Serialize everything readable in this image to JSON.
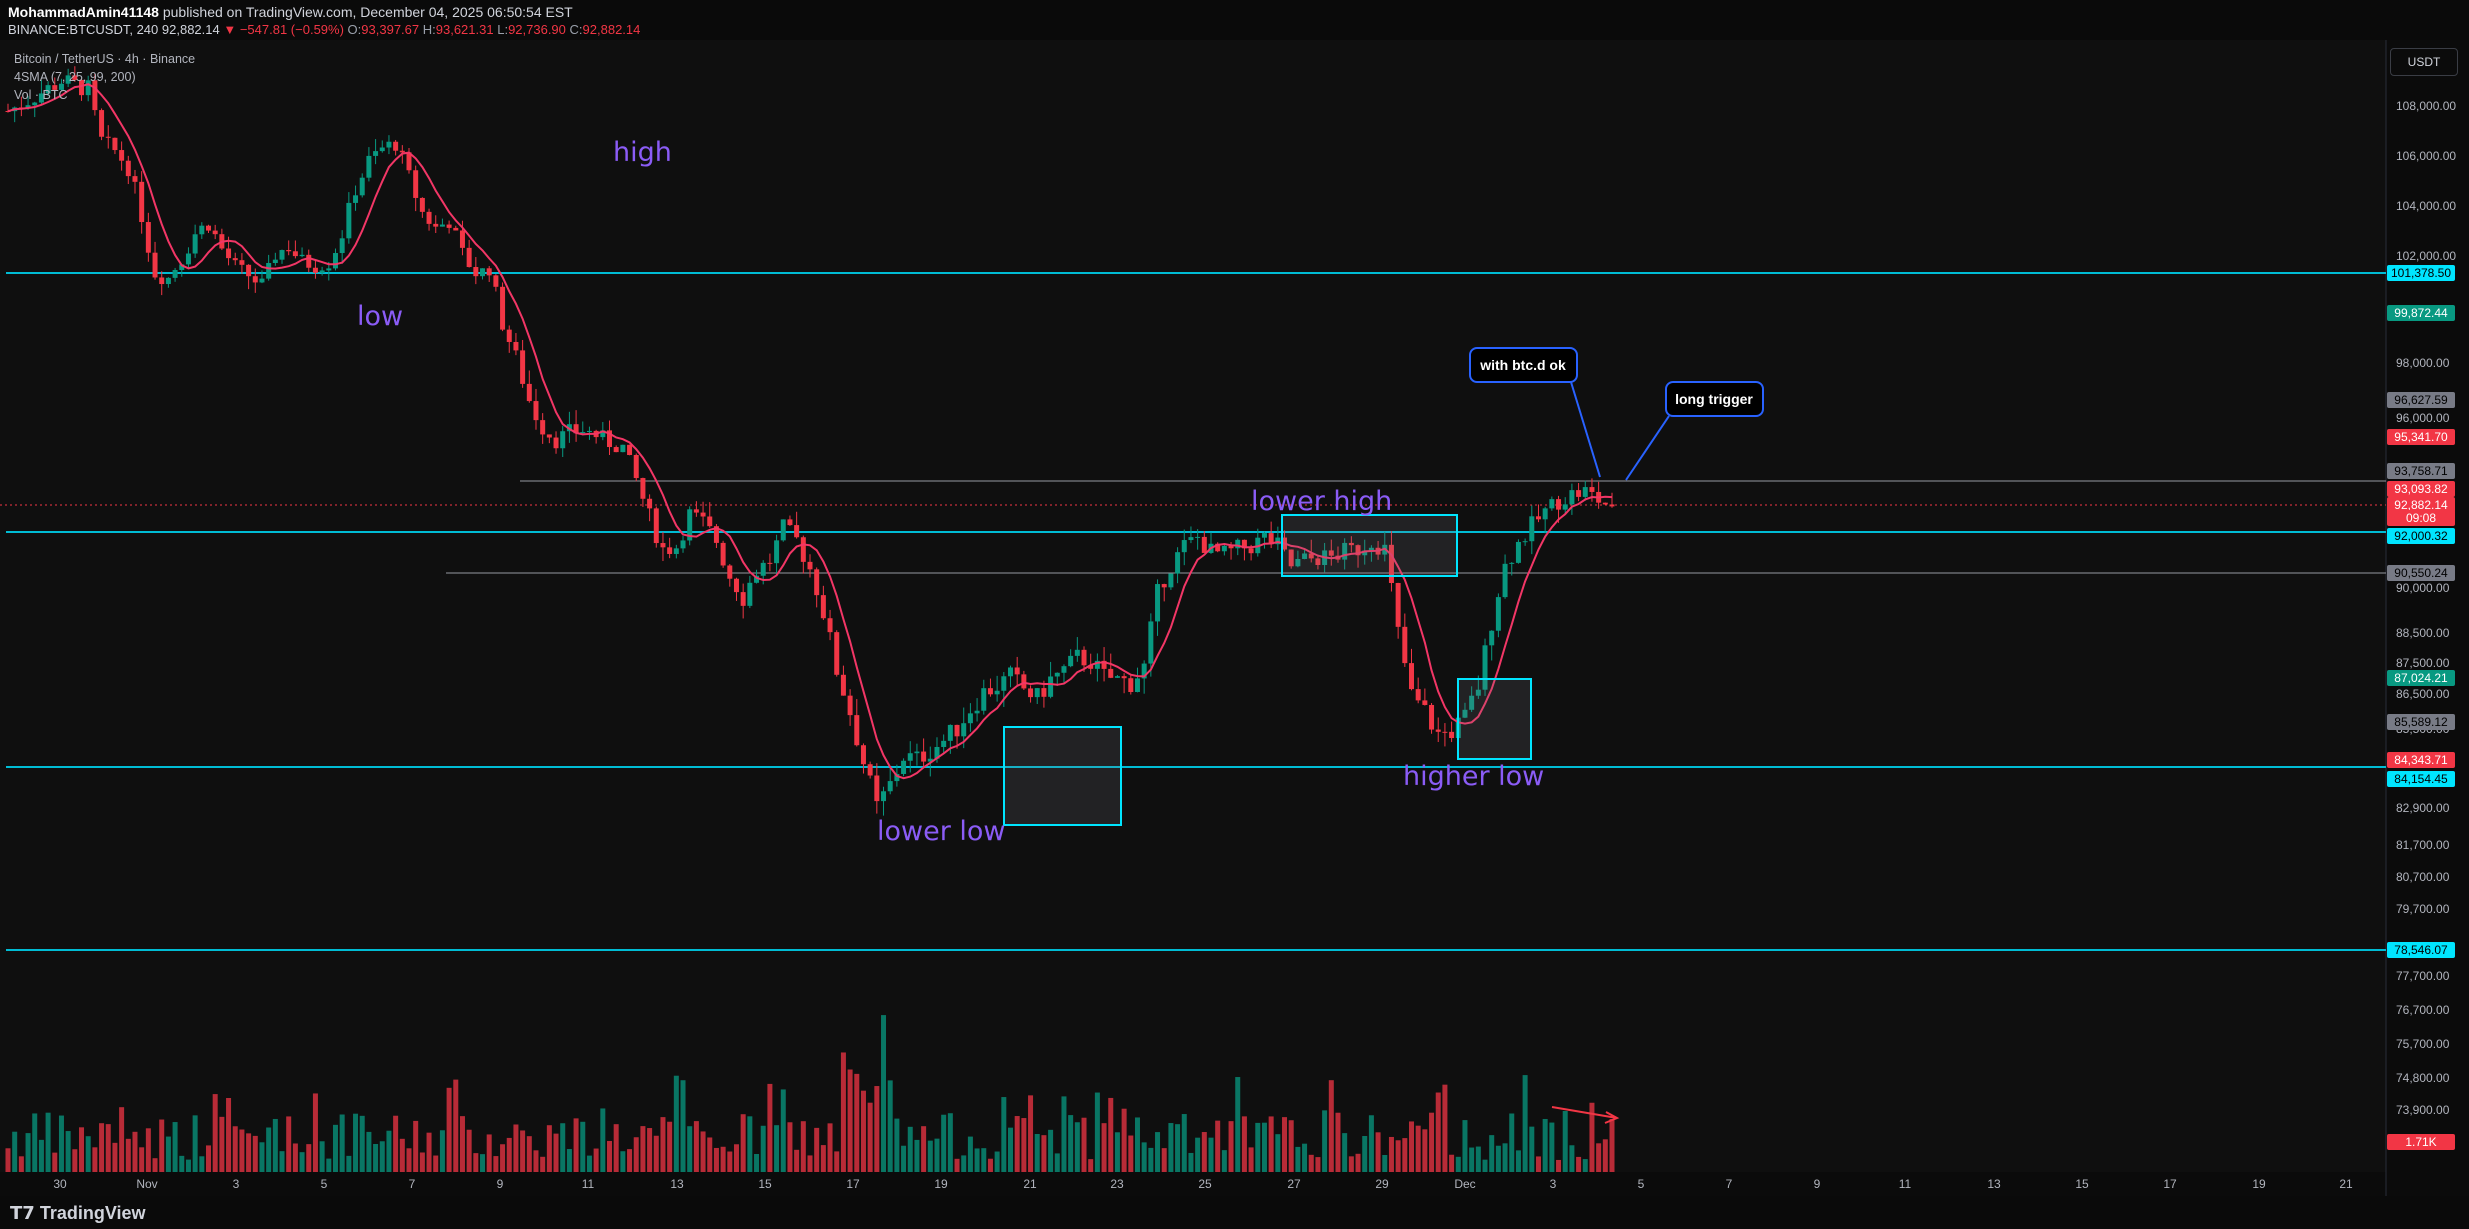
{
  "header": {
    "author": "MohammadAmin41148",
    "published_text": "published on TradingView.com, December 04, 2025 06:50:54 EST",
    "symbol": "BINANCE:BTCUSDT, 240",
    "price": "92,882.14",
    "change": "▼ −547.81 (−0.59%)",
    "o_label": "O:",
    "o": "93,397.67",
    "h_label": "H:",
    "h": "93,621.31",
    "l_label": "L:",
    "l": "92,736.90",
    "c_label": "C:",
    "c": "92,882.14"
  },
  "legend": {
    "line1": "Bitcoin / TetherUS · 4h · Binance",
    "line2": "4SMA (7, 25, 99, 200)",
    "line3": "Vol · BTC"
  },
  "currency": "USDT",
  "footer": {
    "brand": "TradingView"
  },
  "chart_data": {
    "type": "candlestick",
    "y_axis_ticks": [
      "108,000.00",
      "106,000.00",
      "104,000.00",
      "102,000.00",
      "98,000.00",
      "96,000.00",
      "90,000.00",
      "88,500.00",
      "87,500.00",
      "86,500.00",
      "85,500.00",
      "82,900.00",
      "81,700.00",
      "80,700.00",
      "79,700.00",
      "77,700.00",
      "76,700.00",
      "75,700.00",
      "74,800.00",
      "73,900.00",
      "72,900.00"
    ],
    "x_axis_ticks": [
      "30",
      "Nov",
      "3",
      "5",
      "7",
      "9",
      "11",
      "13",
      "15",
      "17",
      "19",
      "21",
      "23",
      "25",
      "27",
      "29",
      "Dec",
      "3",
      "5",
      "7",
      "9",
      "11",
      "13",
      "15",
      "17",
      "19",
      "21"
    ],
    "price_labels": [
      {
        "value": "101,378.50",
        "color": "#00e5ff",
        "text_color": "#000"
      },
      {
        "value": "99,872.44",
        "color": "#089981",
        "text_color": "#fff"
      },
      {
        "value": "96,627.59",
        "color": "#787b86",
        "text_color": "#000"
      },
      {
        "value": "95,341.70",
        "color": "#f23645",
        "text_color": "#fff"
      },
      {
        "value": "93,758.71",
        "color": "#787b86",
        "text_color": "#000"
      },
      {
        "value": "93,093.82",
        "color": "#f23645",
        "text_color": "#fff"
      },
      {
        "value": "92,882.14",
        "color": "#f23645",
        "text_color": "#fff"
      },
      {
        "value": "09:08",
        "color": "#f23645",
        "text_color": "#fff"
      },
      {
        "value": "92,000.32",
        "color": "#00e5ff",
        "text_color": "#000"
      },
      {
        "value": "90,550.24",
        "color": "#787b86",
        "text_color": "#000"
      },
      {
        "value": "87,024.21",
        "color": "#089981",
        "text_color": "#fff"
      },
      {
        "value": "85,589.12",
        "color": "#787b86",
        "text_color": "#000"
      },
      {
        "value": "84,343.71",
        "color": "#f23645",
        "text_color": "#fff"
      },
      {
        "value": "84,154.45",
        "color": "#00e5ff",
        "text_color": "#000"
      },
      {
        "value": "78,546.07",
        "color": "#00e5ff",
        "text_color": "#000"
      },
      {
        "value": "1.71K",
        "color": "#f23645",
        "text_color": "#fff"
      }
    ],
    "horizontal_levels": [
      101378.5,
      93758.71,
      92000.32,
      90550.24,
      84154.45,
      78546.07
    ],
    "annotations": {
      "high": "high",
      "low": "low",
      "lower_high": "lower high",
      "lower_low": "lower low",
      "higher_low": "higher low",
      "callout1": "with btc.d ok",
      "callout2": "long trigger"
    },
    "price_path": [
      [
        0,
        107800
      ],
      [
        8,
        108900
      ],
      [
        12,
        108600
      ],
      [
        14,
        106600
      ],
      [
        16,
        106200
      ],
      [
        18,
        105600
      ],
      [
        20,
        103800
      ],
      [
        22,
        101400
      ],
      [
        24,
        101200
      ],
      [
        26,
        102100
      ],
      [
        28,
        103100
      ],
      [
        30,
        103500
      ],
      [
        32,
        102500
      ],
      [
        34,
        101800
      ],
      [
        36,
        101300
      ],
      [
        38,
        100900
      ],
      [
        40,
        102300
      ],
      [
        42,
        102600
      ],
      [
        44,
        102000
      ],
      [
        46,
        101700
      ],
      [
        48,
        101900
      ],
      [
        50,
        103100
      ],
      [
        52,
        104800
      ],
      [
        54,
        105800
      ],
      [
        56,
        106300
      ],
      [
        58,
        106500
      ],
      [
        60,
        105200
      ],
      [
        62,
        103900
      ],
      [
        64,
        103300
      ],
      [
        66,
        103600
      ],
      [
        68,
        102300
      ],
      [
        70,
        101400
      ],
      [
        72,
        101600
      ],
      [
        74,
        99500
      ],
      [
        76,
        98200
      ],
      [
        78,
        96800
      ],
      [
        80,
        95900
      ],
      [
        82,
        95400
      ],
      [
        84,
        95700
      ],
      [
        86,
        95800
      ],
      [
        88,
        95600
      ],
      [
        90,
        95300
      ],
      [
        92,
        95100
      ],
      [
        94,
        93800
      ],
      [
        96,
        92500
      ],
      [
        98,
        91400
      ],
      [
        100,
        91500
      ],
      [
        102,
        92600
      ],
      [
        104,
        92300
      ],
      [
        106,
        91700
      ],
      [
        108,
        90400
      ],
      [
        110,
        89600
      ],
      [
        112,
        90600
      ],
      [
        114,
        91000
      ],
      [
        116,
        92100
      ],
      [
        118,
        91700
      ],
      [
        120,
        90700
      ],
      [
        122,
        89100
      ],
      [
        124,
        87200
      ],
      [
        126,
        85900
      ],
      [
        128,
        84300
      ],
      [
        130,
        82900
      ],
      [
        132,
        83600
      ],
      [
        134,
        84500
      ],
      [
        136,
        84400
      ],
      [
        138,
        84700
      ],
      [
        140,
        85000
      ],
      [
        142,
        85400
      ],
      [
        144,
        86000
      ],
      [
        146,
        86500
      ],
      [
        148,
        86700
      ],
      [
        150,
        87000
      ],
      [
        152,
        86600
      ],
      [
        154,
        86300
      ],
      [
        156,
        86900
      ],
      [
        158,
        87200
      ],
      [
        160,
        87600
      ],
      [
        162,
        87500
      ],
      [
        164,
        87000
      ],
      [
        166,
        86900
      ],
      [
        168,
        86800
      ],
      [
        170,
        87300
      ],
      [
        172,
        89700
      ],
      [
        174,
        90800
      ],
      [
        176,
        91500
      ],
      [
        178,
        91800
      ],
      [
        180,
        91300
      ],
      [
        182,
        91200
      ],
      [
        184,
        91400
      ],
      [
        186,
        91500
      ],
      [
        188,
        91800
      ],
      [
        190,
        91500
      ],
      [
        192,
        90800
      ],
      [
        194,
        91000
      ],
      [
        196,
        91100
      ],
      [
        198,
        91100
      ],
      [
        200,
        91300
      ],
      [
        202,
        91400
      ],
      [
        204,
        91700
      ],
      [
        206,
        91400
      ],
      [
        208,
        88400
      ],
      [
        210,
        86400
      ],
      [
        212,
        85900
      ],
      [
        214,
        85200
      ],
      [
        216,
        85300
      ],
      [
        218,
        85700
      ],
      [
        220,
        86700
      ],
      [
        222,
        88800
      ],
      [
        224,
        90800
      ],
      [
        226,
        91600
      ],
      [
        228,
        92200
      ],
      [
        230,
        92700
      ],
      [
        232,
        93100
      ],
      [
        234,
        93300
      ],
      [
        236,
        93400
      ],
      [
        238,
        93100
      ],
      [
        240,
        92882
      ]
    ]
  }
}
